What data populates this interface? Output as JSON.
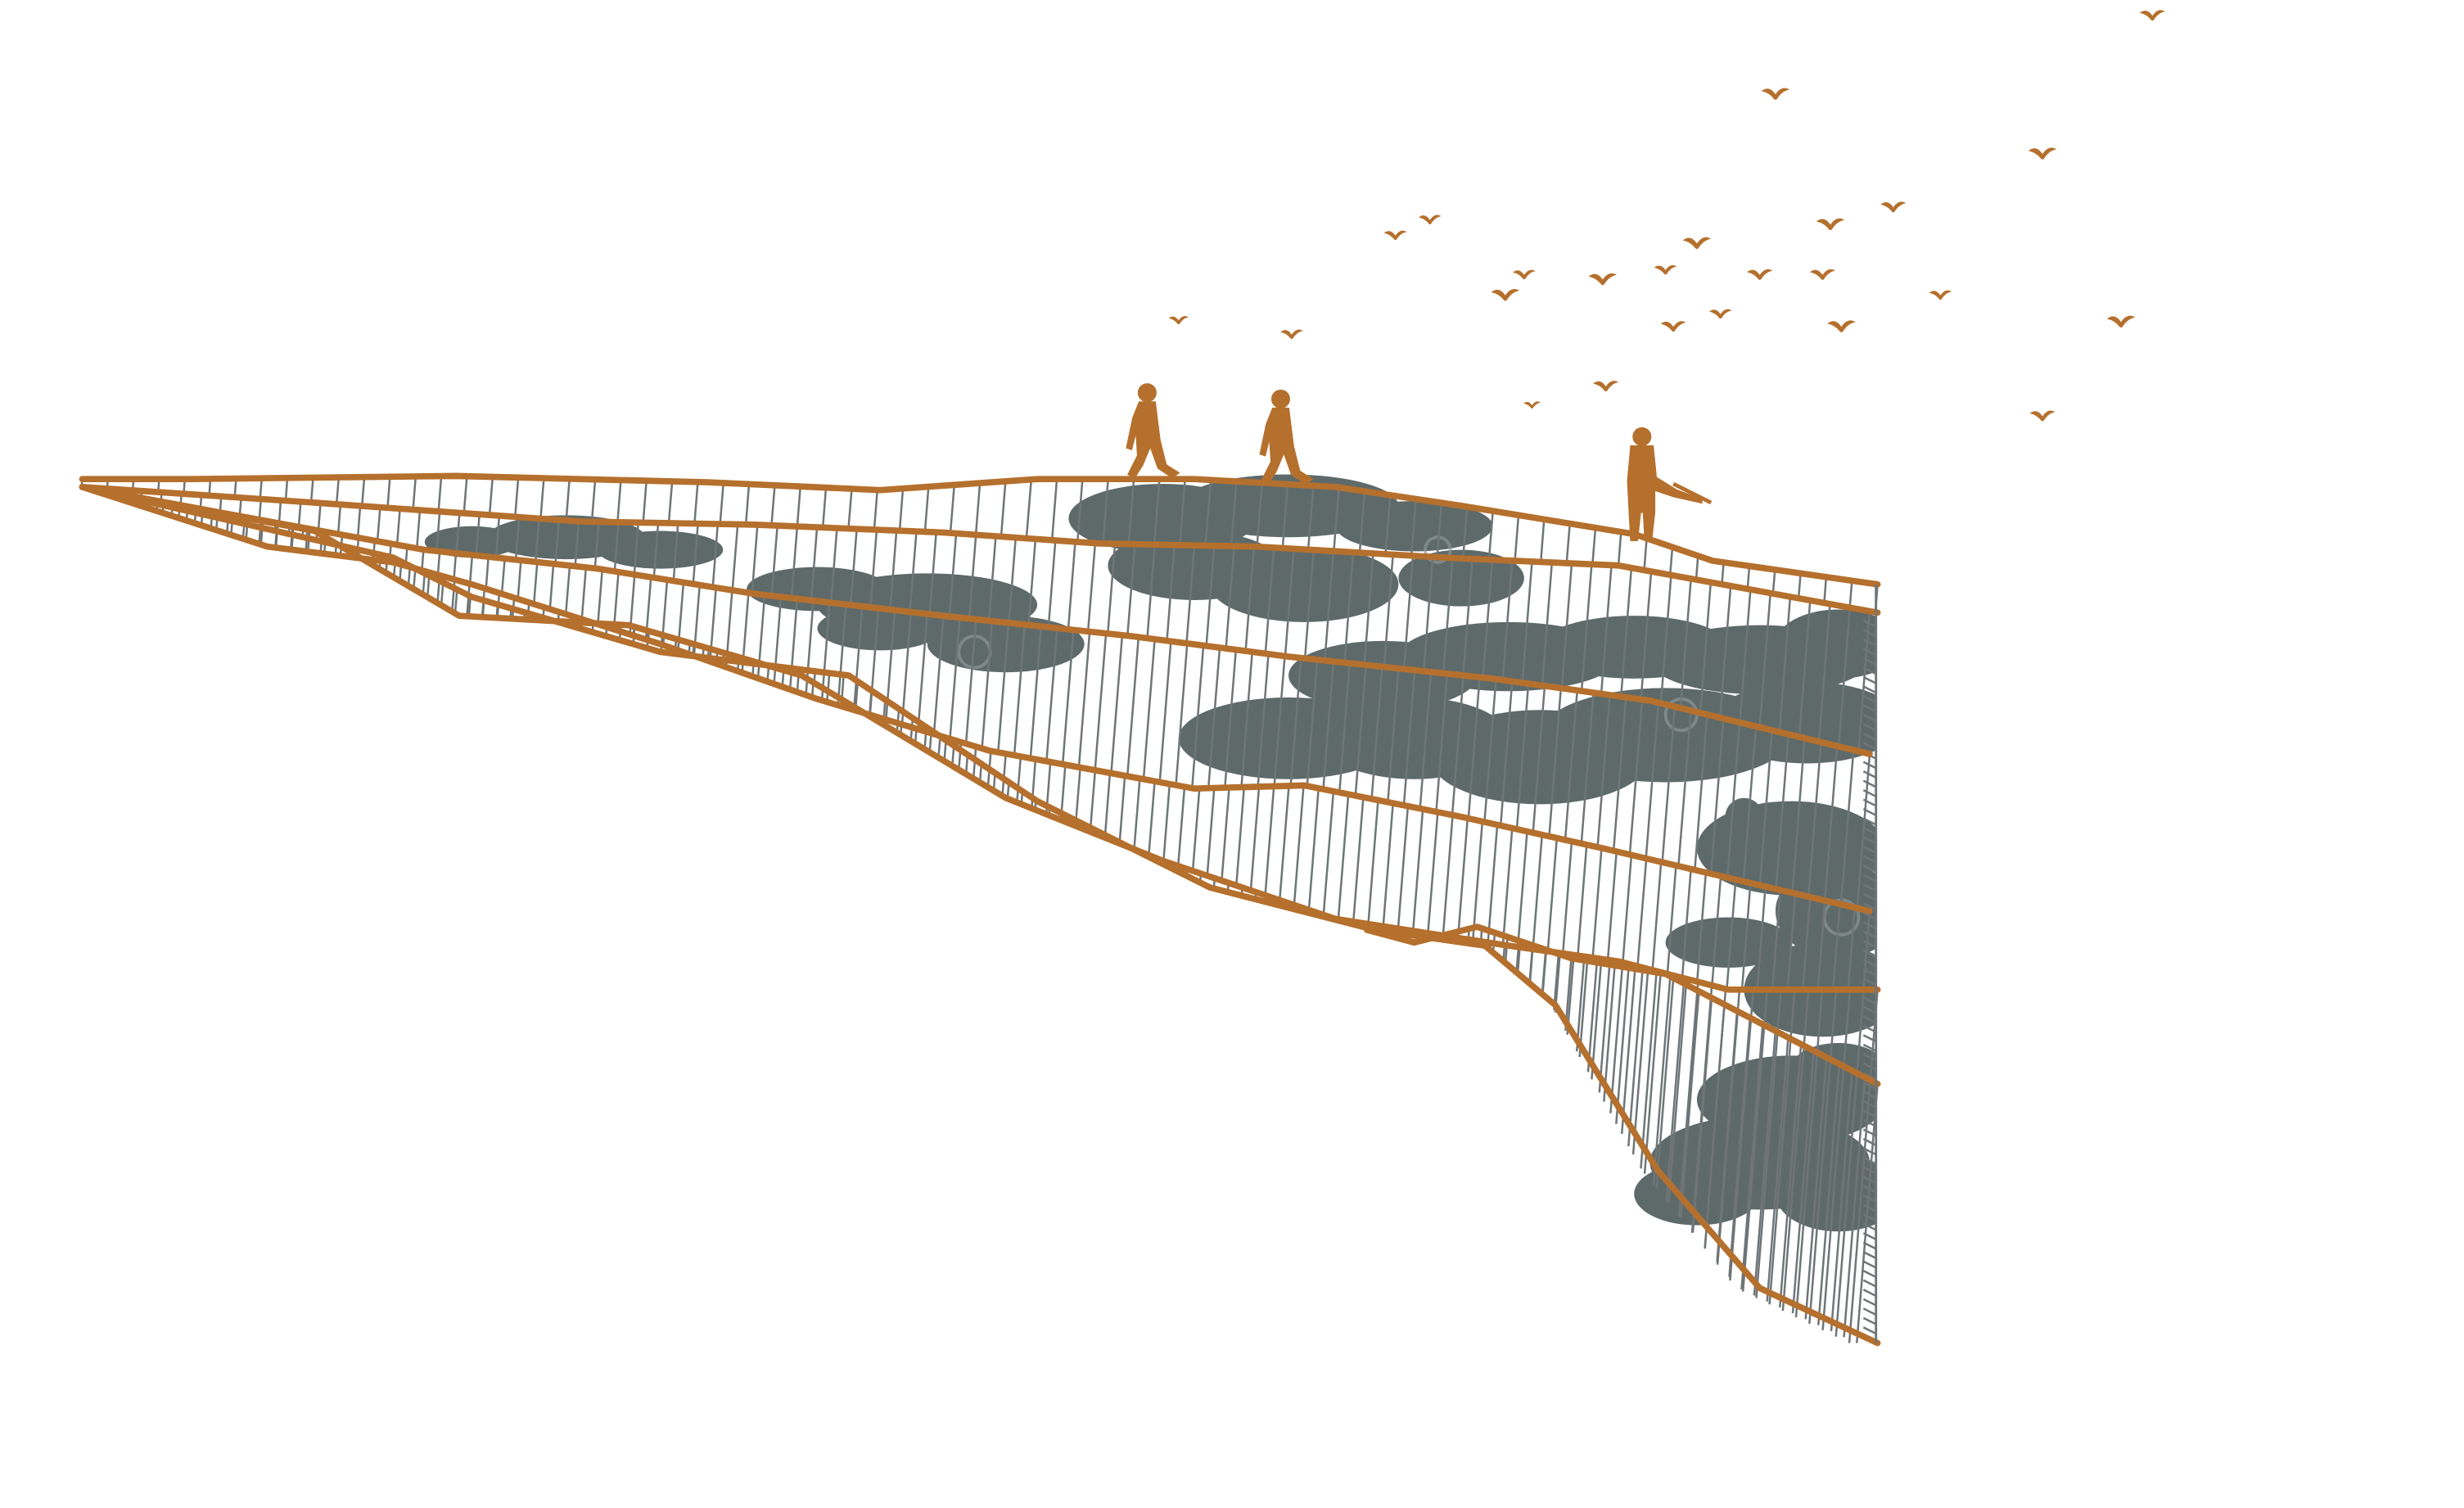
{
  "colors": {
    "background": "#ffffff",
    "contour": "#b5702d",
    "hatch": "#6f7577",
    "cloud": "#5e6a6a",
    "cloud_line": "#8c9597",
    "figure": "#b5702d",
    "bird": "#b5702d"
  },
  "icons": {
    "walking_person": "walking-person-icon",
    "standing_person": "standing-person-with-stick-icon",
    "bird": "flying-bird-icon"
  }
}
